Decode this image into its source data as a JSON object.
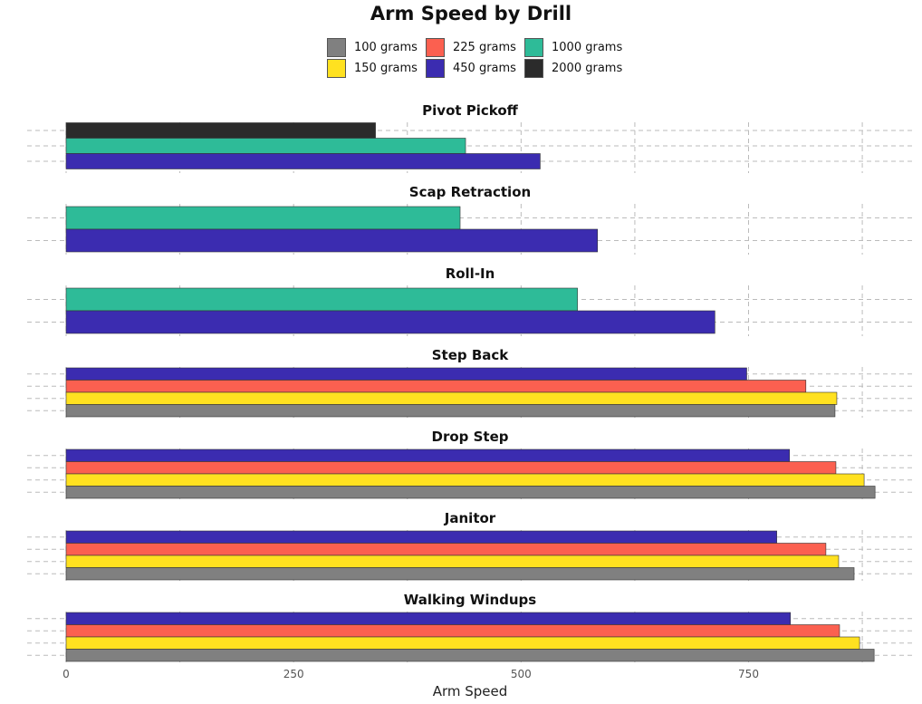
{
  "chart_data": {
    "type": "bar",
    "orientation": "horizontal",
    "title": "Arm Speed by Drill",
    "xlabel": "Arm Speed",
    "ylabel": "",
    "xlim": [
      0,
      930
    ],
    "xticks": [
      0,
      250,
      500,
      750
    ],
    "grid": true,
    "legend_position": "top",
    "legend": [
      {
        "name": "100 grams",
        "color": "#808080"
      },
      {
        "name": "150 grams",
        "color": "#ffe120"
      },
      {
        "name": "225 grams",
        "color": "#fb6050"
      },
      {
        "name": "450 grams",
        "color": "#3b2cb0"
      },
      {
        "name": "1000 grams",
        "color": "#2ebb98"
      },
      {
        "name": "2000 grams",
        "color": "#2b2b2b"
      }
    ],
    "facets": [
      {
        "title": "Pivot Pickoff",
        "bars": [
          {
            "series": "2000 grams",
            "value": 340
          },
          {
            "series": "1000 grams",
            "value": 439
          },
          {
            "series": "450 grams",
            "value": 521
          }
        ]
      },
      {
        "title": "Scap Retraction",
        "bars": [
          {
            "series": "1000 grams",
            "value": 433
          },
          {
            "series": "450 grams",
            "value": 584
          }
        ]
      },
      {
        "title": "Roll-In",
        "bars": [
          {
            "series": "1000 grams",
            "value": 562
          },
          {
            "series": "450 grams",
            "value": 713
          }
        ]
      },
      {
        "title": "Step Back",
        "bars": [
          {
            "series": "450 grams",
            "value": 748
          },
          {
            "series": "225 grams",
            "value": 813
          },
          {
            "series": "150 grams",
            "value": 847
          },
          {
            "series": "100 grams",
            "value": 845
          }
        ]
      },
      {
        "title": "Drop Step",
        "bars": [
          {
            "series": "450 grams",
            "value": 795
          },
          {
            "series": "225 grams",
            "value": 846
          },
          {
            "series": "150 grams",
            "value": 877
          },
          {
            "series": "100 grams",
            "value": 889
          }
        ]
      },
      {
        "title": "Janitor",
        "bars": [
          {
            "series": "450 grams",
            "value": 781
          },
          {
            "series": "225 grams",
            "value": 835
          },
          {
            "series": "150 grams",
            "value": 849
          },
          {
            "series": "100 grams",
            "value": 866
          }
        ]
      },
      {
        "title": "Walking Windups",
        "bars": [
          {
            "series": "450 grams",
            "value": 796
          },
          {
            "series": "225 grams",
            "value": 850
          },
          {
            "series": "150 grams",
            "value": 872
          },
          {
            "series": "100 grams",
            "value": 888
          }
        ]
      }
    ]
  }
}
